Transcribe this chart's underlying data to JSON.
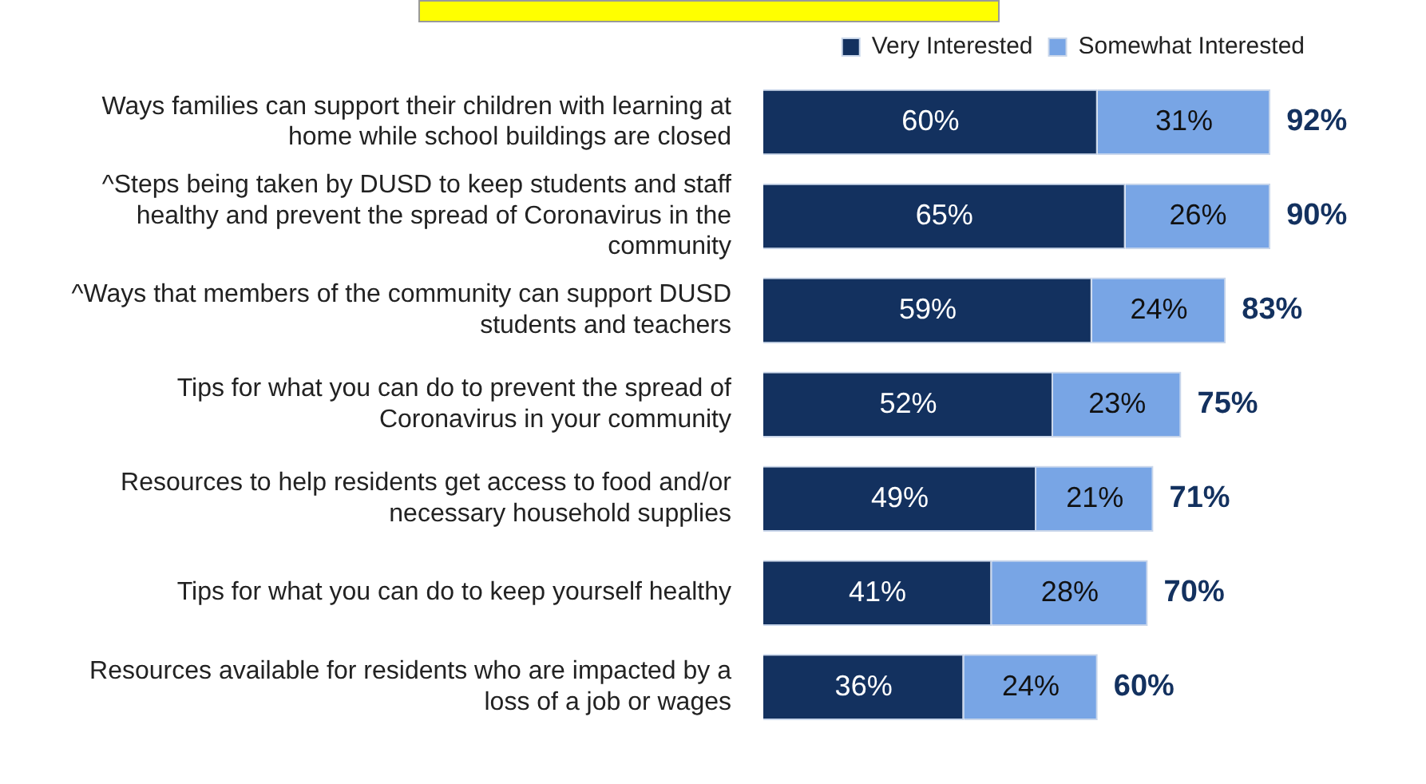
{
  "chart_data": {
    "type": "bar",
    "orientation": "horizontal",
    "stacked": true,
    "legend": "top right",
    "categories": [
      "Ways families can support their children with learning at home while school buildings are closed",
      "^Steps being taken by DUSD to keep students and staff healthy and prevent the spread of Coronavirus in the community",
      "^Ways that members of the community can support DUSD students and teachers",
      "Tips for what you can do to prevent the spread of Coronavirus in your community",
      "Resources to help residents get access to food and/or necessary household supplies",
      "Tips for what you can do to keep yourself healthy",
      "Resources available for residents who are impacted by a loss of a job or wages"
    ],
    "series": [
      {
        "name": "Very Interested",
        "color": "#13315f",
        "values": [
          60,
          65,
          59,
          52,
          49,
          41,
          36
        ],
        "value_labels": [
          "60%",
          "65%",
          "59%",
          "52%",
          "49%",
          "41%",
          "36%"
        ]
      },
      {
        "name": "Somewhat Interested",
        "color": "#78a5e5",
        "values": [
          31,
          26,
          24,
          23,
          21,
          28,
          24
        ],
        "value_labels": [
          "31%",
          "26%",
          "24%",
          "23%",
          "21%",
          "28%",
          "24%"
        ]
      }
    ],
    "totals": [
      "92%",
      "90%",
      "83%",
      "75%",
      "71%",
      "70%",
      "60%"
    ]
  }
}
